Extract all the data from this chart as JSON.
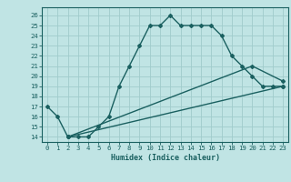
{
  "title": "",
  "xlabel": "Humidex (Indice chaleur)",
  "bg_color": "#c0e4e4",
  "grid_color": "#a0cccc",
  "line_color": "#1a6060",
  "spine_color": "#1a6060",
  "xlim": [
    -0.5,
    23.5
  ],
  "ylim": [
    13.5,
    26.8
  ],
  "xticks": [
    0,
    1,
    2,
    3,
    4,
    5,
    6,
    7,
    8,
    9,
    10,
    11,
    12,
    13,
    14,
    15,
    16,
    17,
    18,
    19,
    20,
    21,
    22,
    23
  ],
  "yticks": [
    14,
    15,
    16,
    17,
    18,
    19,
    20,
    21,
    22,
    23,
    24,
    25,
    26
  ],
  "line1_x": [
    0,
    1,
    2,
    3,
    4,
    5,
    6,
    7,
    8,
    9,
    10,
    11,
    12,
    13,
    14,
    15,
    16,
    17,
    18,
    19,
    20,
    21,
    22,
    23
  ],
  "line1_y": [
    17,
    16,
    14,
    14,
    14,
    15,
    16,
    19,
    21,
    23,
    25,
    25,
    26,
    25,
    25,
    25,
    25,
    24,
    22,
    21,
    20,
    19,
    19,
    19
  ],
  "line2_x": [
    2,
    23
  ],
  "line2_y": [
    14,
    19
  ],
  "line3_x": [
    2,
    20,
    23
  ],
  "line3_y": [
    14,
    21,
    19.5
  ],
  "xlabel_fontsize": 6.0,
  "tick_fontsize": 5.2,
  "lw": 1.0,
  "marker_size": 2.0
}
